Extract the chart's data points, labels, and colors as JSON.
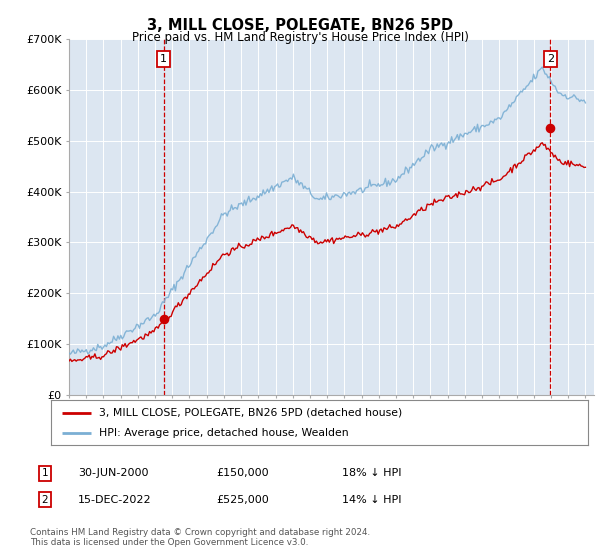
{
  "title": "3, MILL CLOSE, POLEGATE, BN26 5PD",
  "subtitle": "Price paid vs. HM Land Registry's House Price Index (HPI)",
  "legend_line1": "3, MILL CLOSE, POLEGATE, BN26 5PD (detached house)",
  "legend_line2": "HPI: Average price, detached house, Wealden",
  "annotation1_label": "1",
  "annotation1_date": "30-JUN-2000",
  "annotation1_price": 150000,
  "annotation1_text": "18% ↓ HPI",
  "annotation2_label": "2",
  "annotation2_date": "15-DEC-2022",
  "annotation2_price": 525000,
  "annotation2_text": "14% ↓ HPI",
  "footer": "Contains HM Land Registry data © Crown copyright and database right 2024.\nThis data is licensed under the Open Government Licence v3.0.",
  "hpi_color": "#7bafd4",
  "price_color": "#cc0000",
  "vline_color": "#cc0000",
  "background_color": "#dce6f1",
  "ylim": [
    0,
    700000
  ],
  "yticks": [
    0,
    100000,
    200000,
    300000,
    400000,
    500000,
    600000,
    700000
  ],
  "ytick_labels": [
    "£0",
    "£100K",
    "£200K",
    "£300K",
    "£400K",
    "£500K",
    "£600K",
    "£700K"
  ],
  "purchase1_year": 2000.5,
  "purchase1_price": 150000,
  "purchase2_year": 2022.96,
  "purchase2_price": 525000,
  "xlim_left": 1995.0,
  "xlim_right": 2025.5
}
